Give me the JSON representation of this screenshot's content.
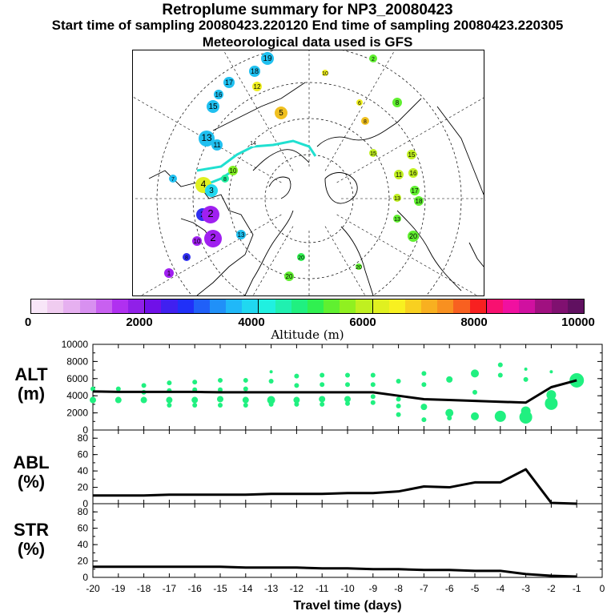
{
  "title": "Retroplume summary for NP3_20080423",
  "subtitle": "Start time of sampling 20080423.220120     End time of sampling 20080423.220305",
  "met_line": "Meteorological data used is GFS",
  "colorbar": {
    "label": "Altitude (m)",
    "ticks": [
      "0",
      "2000",
      "4000",
      "6000",
      "8000",
      "10000"
    ],
    "colors": [
      "#f8e6f8",
      "#f0ccf0",
      "#e6b0f0",
      "#d890f0",
      "#c860f0",
      "#b030f0",
      "#9020e8",
      "#7010e8",
      "#4020f0",
      "#2030f8",
      "#2060f8",
      "#2090f8",
      "#20b8f8",
      "#20d8f0",
      "#20f0e0",
      "#20f0b0",
      "#20f080",
      "#30f050",
      "#60f030",
      "#90f020",
      "#c0f020",
      "#e0f020",
      "#f8f020",
      "#f8d020",
      "#f8b020",
      "#f89020",
      "#f86020",
      "#f82020",
      "#f81070",
      "#f010a0",
      "#d010a0",
      "#a01080",
      "#801070",
      "#601060"
    ]
  },
  "map": {
    "labels": [
      "19",
      "18",
      "17",
      "16",
      "15",
      "13",
      "11",
      "14",
      "12",
      "10",
      "9",
      "8",
      "7",
      "6",
      "5",
      "4",
      "3",
      "2",
      "1",
      "20",
      "13",
      "11",
      "10",
      "15",
      "16",
      "17",
      "18"
    ],
    "description_icons": [
      "polar-grid",
      "coastlines",
      "retroplume-centroids"
    ]
  },
  "chart_data": [
    {
      "type": "line",
      "name": "ALT",
      "ylabel_line1": "ALT",
      "ylabel_line2": "(m)",
      "ylim": [
        0,
        10000
      ],
      "yticks": [
        "0",
        "2000",
        "4000",
        "6000",
        "8000",
        "10000"
      ],
      "x": [
        -20,
        -19,
        -18,
        -17,
        -16,
        -15,
        -14,
        -13,
        -12,
        -11,
        -10,
        -9,
        -8,
        -7,
        -6,
        -5,
        -4,
        -3,
        -2,
        -1
      ],
      "values": [
        4500,
        4450,
        4450,
        4450,
        4450,
        4400,
        4400,
        4400,
        4400,
        4400,
        4400,
        4400,
        4000,
        3600,
        3500,
        3400,
        3300,
        3200,
        5000,
        5800
      ],
      "cluster_points": [
        {
          "x": -20,
          "alt": 4800,
          "r": 3
        },
        {
          "x": -20,
          "alt": 3500,
          "r": 4
        },
        {
          "x": -19,
          "alt": 4800,
          "r": 3
        },
        {
          "x": -19,
          "alt": 3500,
          "r": 4
        },
        {
          "x": -18,
          "alt": 5200,
          "r": 3
        },
        {
          "x": -18,
          "alt": 4400,
          "r": 3
        },
        {
          "x": -18,
          "alt": 3500,
          "r": 4
        },
        {
          "x": -17,
          "alt": 5500,
          "r": 3
        },
        {
          "x": -17,
          "alt": 4600,
          "r": 3
        },
        {
          "x": -17,
          "alt": 3500,
          "r": 4
        },
        {
          "x": -17,
          "alt": 2900,
          "r": 3
        },
        {
          "x": -16,
          "alt": 5600,
          "r": 3
        },
        {
          "x": -16,
          "alt": 4700,
          "r": 3
        },
        {
          "x": -16,
          "alt": 3500,
          "r": 4
        },
        {
          "x": -16,
          "alt": 2900,
          "r": 3
        },
        {
          "x": -15,
          "alt": 5800,
          "r": 3
        },
        {
          "x": -15,
          "alt": 4700,
          "r": 3
        },
        {
          "x": -15,
          "alt": 3600,
          "r": 4
        },
        {
          "x": -15,
          "alt": 2900,
          "r": 3
        },
        {
          "x": -14,
          "alt": 5800,
          "r": 3
        },
        {
          "x": -14,
          "alt": 4800,
          "r": 3
        },
        {
          "x": -14,
          "alt": 3500,
          "r": 4
        },
        {
          "x": -14,
          "alt": 2900,
          "r": 3
        },
        {
          "x": -13,
          "alt": 6800,
          "r": 2
        },
        {
          "x": -13,
          "alt": 5700,
          "r": 3
        },
        {
          "x": -13,
          "alt": 3500,
          "r": 5
        },
        {
          "x": -13,
          "alt": 3000,
          "r": 3
        },
        {
          "x": -12,
          "alt": 6300,
          "r": 3
        },
        {
          "x": -12,
          "alt": 5200,
          "r": 3
        },
        {
          "x": -12,
          "alt": 3500,
          "r": 4
        },
        {
          "x": -12,
          "alt": 3000,
          "r": 3
        },
        {
          "x": -11,
          "alt": 6400,
          "r": 3
        },
        {
          "x": -11,
          "alt": 5300,
          "r": 3
        },
        {
          "x": -11,
          "alt": 3600,
          "r": 4
        },
        {
          "x": -11,
          "alt": 3000,
          "r": 3
        },
        {
          "x": -10,
          "alt": 6400,
          "r": 3
        },
        {
          "x": -10,
          "alt": 5300,
          "r": 3
        },
        {
          "x": -10,
          "alt": 3600,
          "r": 4
        },
        {
          "x": -10,
          "alt": 3100,
          "r": 3
        },
        {
          "x": -9,
          "alt": 6400,
          "r": 3
        },
        {
          "x": -9,
          "alt": 5300,
          "r": 3
        },
        {
          "x": -9,
          "alt": 3900,
          "r": 3
        },
        {
          "x": -9,
          "alt": 3200,
          "r": 3
        },
        {
          "x": -8,
          "alt": 5700,
          "r": 3
        },
        {
          "x": -8,
          "alt": 3600,
          "r": 3
        },
        {
          "x": -8,
          "alt": 2800,
          "r": 3
        },
        {
          "x": -8,
          "alt": 1800,
          "r": 3
        },
        {
          "x": -7,
          "alt": 6600,
          "r": 3
        },
        {
          "x": -7,
          "alt": 5300,
          "r": 3
        },
        {
          "x": -7,
          "alt": 2700,
          "r": 4
        },
        {
          "x": -7,
          "alt": 1200,
          "r": 3
        },
        {
          "x": -6,
          "alt": 5900,
          "r": 4
        },
        {
          "x": -6,
          "alt": 2000,
          "r": 5
        },
        {
          "x": -6,
          "alt": 1400,
          "r": 3
        },
        {
          "x": -5,
          "alt": 6600,
          "r": 5
        },
        {
          "x": -5,
          "alt": 4400,
          "r": 3
        },
        {
          "x": -5,
          "alt": 1600,
          "r": 5
        },
        {
          "x": -4,
          "alt": 7600,
          "r": 3
        },
        {
          "x": -4,
          "alt": 6400,
          "r": 3
        },
        {
          "x": -4,
          "alt": 1600,
          "r": 7
        },
        {
          "x": -3,
          "alt": 7100,
          "r": 2
        },
        {
          "x": -3,
          "alt": 5900,
          "r": 3
        },
        {
          "x": -3,
          "alt": 2200,
          "r": 6
        },
        {
          "x": -3,
          "alt": 1500,
          "r": 8
        },
        {
          "x": -2,
          "alt": 6800,
          "r": 2
        },
        {
          "x": -2,
          "alt": 4100,
          "r": 6
        },
        {
          "x": -2,
          "alt": 3100,
          "r": 8
        },
        {
          "x": -1,
          "alt": 5800,
          "r": 9
        }
      ]
    },
    {
      "type": "line",
      "name": "ABL",
      "ylabel_line1": "ABL",
      "ylabel_line2": "(%)",
      "ylim": [
        0,
        90
      ],
      "yticks": [
        "0",
        "20",
        "40",
        "60",
        "80"
      ],
      "x": [
        -20,
        -19,
        -18,
        -17,
        -16,
        -15,
        -14,
        -13,
        -12,
        -11,
        -10,
        -9,
        -8,
        -7,
        -6,
        -5,
        -4,
        -3,
        -2,
        -1
      ],
      "values": [
        10,
        10,
        10,
        11,
        11,
        11,
        11,
        12,
        12,
        12,
        13,
        13,
        15,
        21,
        20,
        26,
        26,
        42,
        1,
        0
      ]
    },
    {
      "type": "line",
      "name": "STR",
      "ylabel_line1": "STR",
      "ylabel_line2": "(%)",
      "ylim": [
        0,
        90
      ],
      "yticks": [
        "0",
        "20",
        "40",
        "60",
        "80"
      ],
      "x": [
        -20,
        -19,
        -18,
        -17,
        -16,
        -15,
        -14,
        -13,
        -12,
        -11,
        -10,
        -9,
        -8,
        -7,
        -6,
        -5,
        -4,
        -3,
        -2,
        -1
      ],
      "values": [
        13,
        13,
        13,
        13,
        13,
        13,
        12,
        12,
        12,
        11,
        11,
        10,
        10,
        9,
        9,
        8,
        8,
        4,
        2,
        1
      ],
      "xlabel": "Travel time (days)",
      "xticks": [
        "-20",
        "-19",
        "-18",
        "-17",
        "-16",
        "-15",
        "-14",
        "-13",
        "-12",
        "-11",
        "-10",
        "-9",
        "-8",
        "-7",
        "-6",
        "-5",
        "-4",
        "-3",
        "-2",
        "-1",
        "0"
      ]
    }
  ]
}
